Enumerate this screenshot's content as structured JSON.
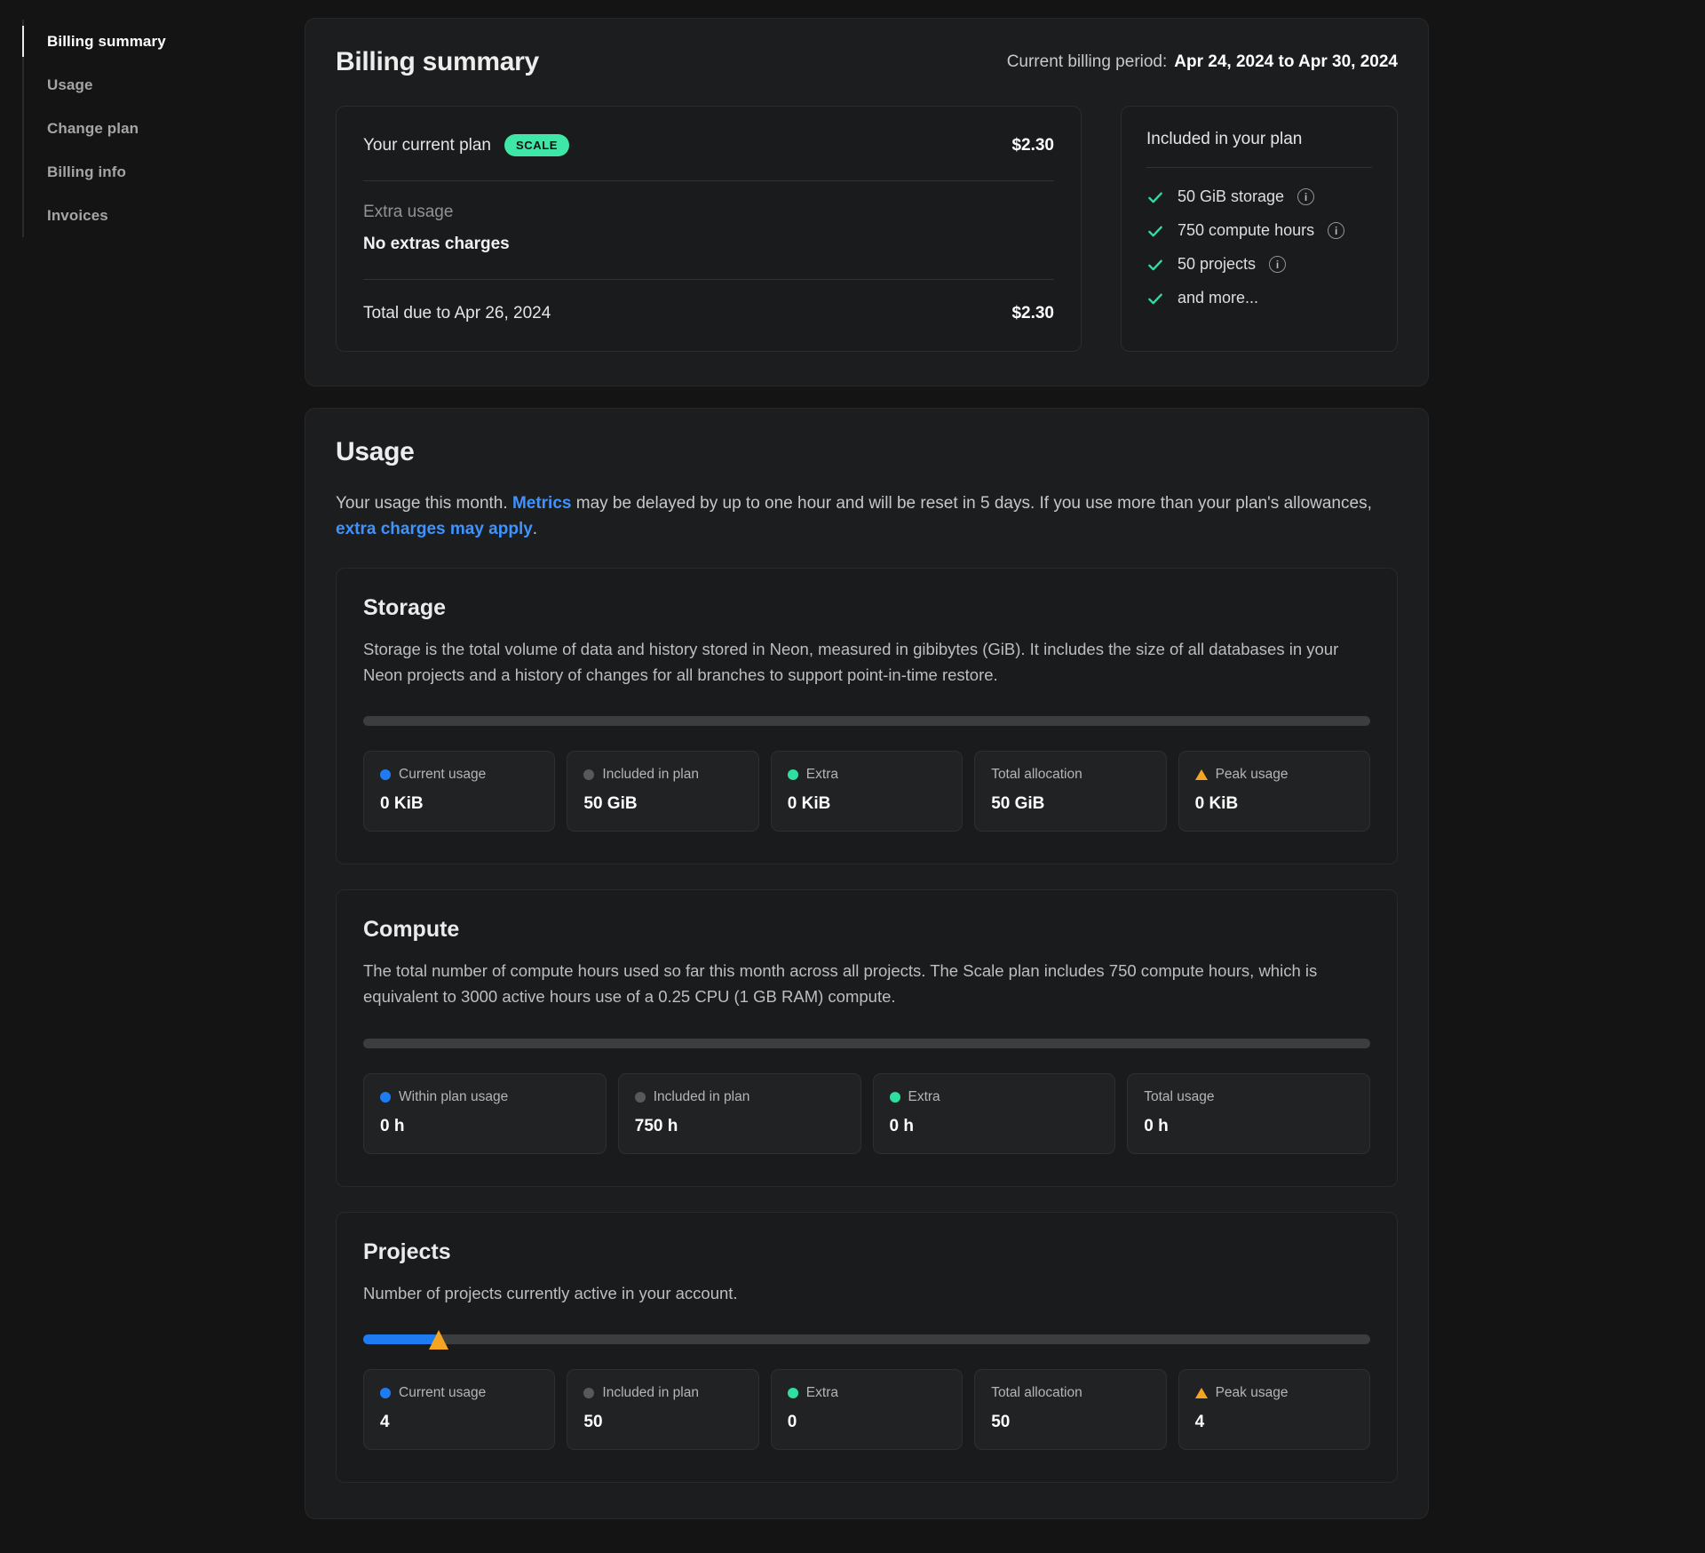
{
  "colors": {
    "page_bg": "#141415",
    "card_bg": "#1c1d1e",
    "accent_green": "#3ee6a7",
    "check_green": "#2ee0a0",
    "link_blue": "#3e93ff",
    "usage_blue": "#1f7bf2",
    "peak_orange": "#f6a522"
  },
  "sidebar": {
    "items": [
      {
        "label": "Billing summary",
        "active": true
      },
      {
        "label": "Usage",
        "active": false
      },
      {
        "label": "Change plan",
        "active": false
      },
      {
        "label": "Billing info",
        "active": false
      },
      {
        "label": "Invoices",
        "active": false
      }
    ]
  },
  "billing_summary": {
    "title": "Billing summary",
    "billing_period_label": "Current billing period:",
    "billing_period_value": "Apr 24, 2024 to Apr 30, 2024",
    "plan_card": {
      "current_plan_label": "Your current plan",
      "plan_badge": "SCALE",
      "plan_amount": "$2.30",
      "extra_usage_label": "Extra usage",
      "extra_usage_value": "No extras charges",
      "total_label": "Total due to Apr 26, 2024",
      "total_amount": "$2.30"
    },
    "included_card": {
      "title": "Included in your plan",
      "items": [
        {
          "label": "50 GiB storage",
          "info": true
        },
        {
          "label": "750 compute hours",
          "info": true
        },
        {
          "label": "50 projects",
          "info": true
        },
        {
          "label": "and more...",
          "info": false
        }
      ]
    }
  },
  "usage": {
    "title": "Usage",
    "description": {
      "part1": "Your usage this month. ",
      "link1": "Metrics",
      "part2": " may be delayed by up to one hour and will be reset in 5 days. If you use more than your plan's allowances, ",
      "link2": "extra charges may apply",
      "part3": "."
    },
    "sections": [
      {
        "title": "Storage",
        "description": "Storage is the total volume of data and history stored in Neon, measured in gibibytes (GiB). It includes the size of all databases in your Neon projects and a history of changes for all branches to support point-in-time restore.",
        "progress": {
          "fill_percent": 0,
          "peak_percent": null
        },
        "stats": [
          {
            "label": "Current usage",
            "value": "0 KiB",
            "marker": "dot-blue"
          },
          {
            "label": "Included in plan",
            "value": "50 GiB",
            "marker": "dot-gray"
          },
          {
            "label": "Extra",
            "value": "0 KiB",
            "marker": "dot-green"
          },
          {
            "label": "Total allocation",
            "value": "50 GiB",
            "marker": "none"
          },
          {
            "label": "Peak usage",
            "value": "0 KiB",
            "marker": "triangle-orange"
          }
        ]
      },
      {
        "title": "Compute",
        "description": "The total number of compute hours used so far this month across all projects. The Scale plan includes 750 compute hours, which is equivalent to 3000 active hours use of a 0.25 CPU (1 GB RAM) compute.",
        "progress": {
          "fill_percent": 0,
          "peak_percent": null
        },
        "stats": [
          {
            "label": "Within plan usage",
            "value": "0 h",
            "marker": "dot-blue"
          },
          {
            "label": "Included in plan",
            "value": "750 h",
            "marker": "dot-gray"
          },
          {
            "label": "Extra",
            "value": "0 h",
            "marker": "dot-green"
          },
          {
            "label": "Total usage",
            "value": "0 h",
            "marker": "none"
          }
        ]
      },
      {
        "title": "Projects",
        "description": "Number of projects currently active in your account.",
        "progress": {
          "fill_percent": 7.5,
          "peak_percent": 7.5
        },
        "stats": [
          {
            "label": "Current usage",
            "value": "4",
            "marker": "dot-blue"
          },
          {
            "label": "Included in plan",
            "value": "50",
            "marker": "dot-gray"
          },
          {
            "label": "Extra",
            "value": "0",
            "marker": "dot-green"
          },
          {
            "label": "Total allocation",
            "value": "50",
            "marker": "none"
          },
          {
            "label": "Peak usage",
            "value": "4",
            "marker": "triangle-orange"
          }
        ]
      }
    ]
  }
}
